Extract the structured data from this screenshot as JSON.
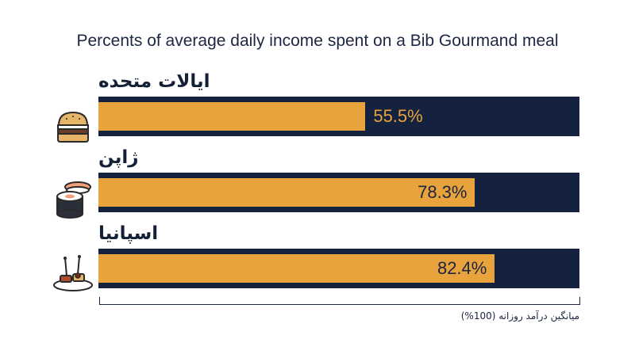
{
  "chart_data": {
    "type": "bar",
    "title": "Percents of average daily income spent on a Bib Gourmand meal",
    "categories": [
      "ایالات متحده",
      "ژاپن",
      "اسپانیا"
    ],
    "values": [
      55.5,
      78.3,
      82.4
    ],
    "value_labels": [
      "55.5%",
      "78.3%",
      "82.4%"
    ],
    "xlabel": "میانگین درآمد روزانه (100%)",
    "xlim": [
      0,
      100
    ],
    "orientation": "horizontal",
    "grid": false,
    "legend": "none",
    "colors": {
      "fill": "#e8a33c",
      "track": "#15223f"
    },
    "icons": [
      "burger-icon",
      "sushi-icon",
      "tapas-icon"
    ]
  }
}
